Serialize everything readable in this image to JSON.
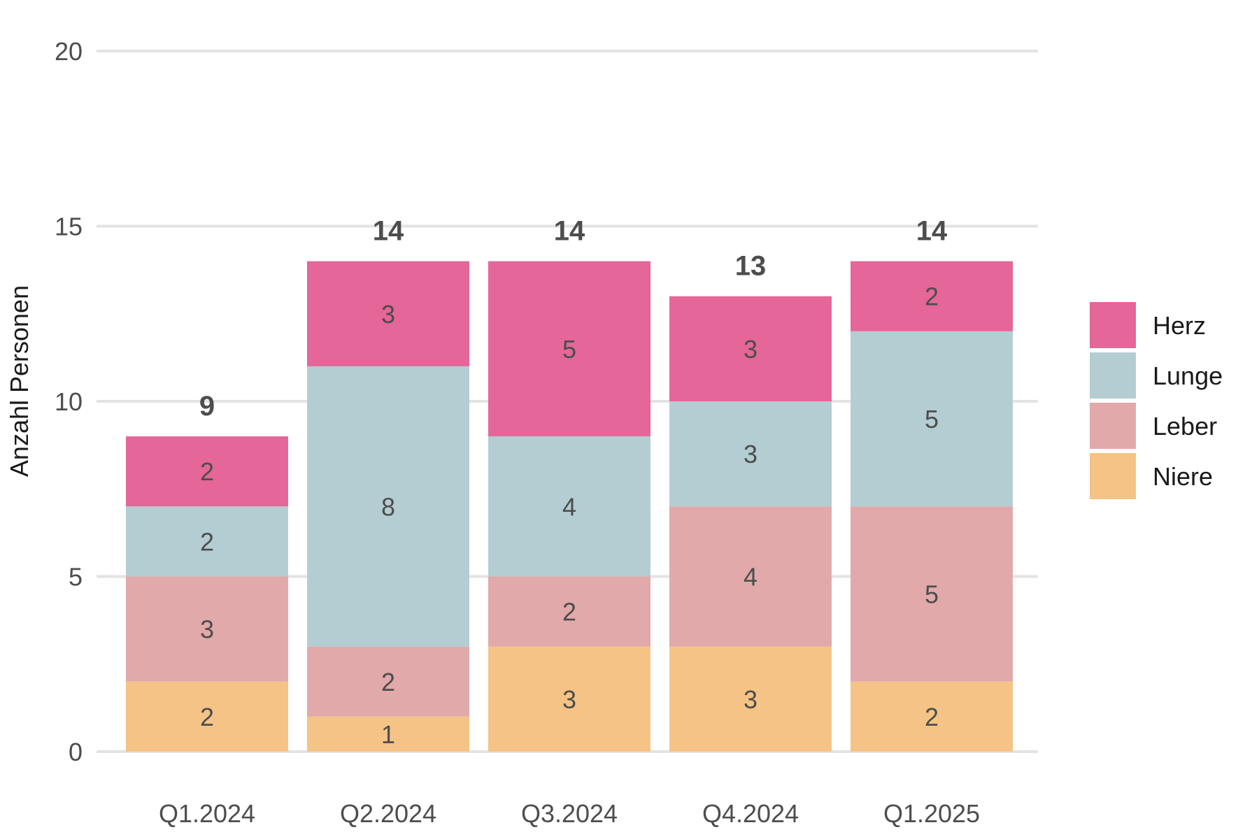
{
  "chart_data": {
    "type": "bar",
    "stacked": true,
    "categories": [
      "Q1.2024",
      "Q2.2024",
      "Q3.2024",
      "Q4.2024",
      "Q1.2025"
    ],
    "series": [
      {
        "name": "Niere",
        "color": "#F5C385",
        "values": [
          2,
          1,
          3,
          3,
          2
        ]
      },
      {
        "name": "Leber",
        "color": "#E1A9AA",
        "values": [
          3,
          2,
          2,
          4,
          5
        ]
      },
      {
        "name": "Lunge",
        "color": "#B4CDD2",
        "values": [
          2,
          8,
          4,
          3,
          5
        ]
      },
      {
        "name": "Herz",
        "color": "#E56698",
        "values": [
          2,
          3,
          5,
          3,
          2
        ]
      }
    ],
    "totals": [
      9,
      14,
      14,
      13,
      14
    ],
    "ylabel": "Anzahl Personen",
    "xlabel": "",
    "ylim": [
      0,
      20
    ],
    "yticks": [
      0,
      5,
      10,
      15,
      20
    ],
    "grid": "horizontal",
    "legend_position": "right",
    "legend_order": [
      "Herz",
      "Lunge",
      "Leber",
      "Niere"
    ]
  }
}
